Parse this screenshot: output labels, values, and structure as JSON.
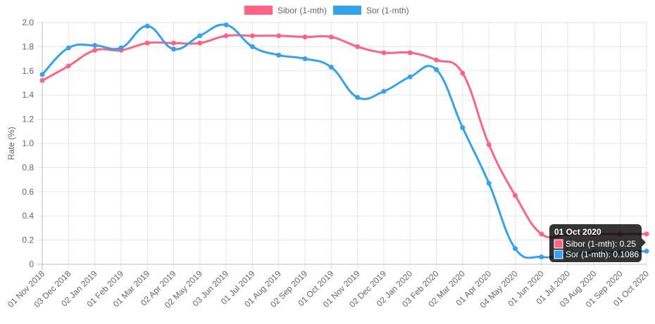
{
  "chart_data": {
    "type": "line",
    "categories": [
      "01 Nov 2018",
      "03 Dec 2018",
      "02 Jan 2019",
      "01 Feb 2019",
      "01 Mar 2019",
      "02 Apr 2019",
      "02 May 2019",
      "03 Jun 2019",
      "01 Jul 2019",
      "01 Aug 2019",
      "02 Sep 2019",
      "01 Oct 2019",
      "01 Nov 2019",
      "02 Dec 2019",
      "02 Jan 2020",
      "03 Feb 2020",
      "02 Mar 2020",
      "01 Apr 2020",
      "04 May 2020",
      "01 Jun 2020",
      "01 Jul 2020",
      "03 Aug 2020",
      "01 Sep 2020",
      "01 Oct 2020"
    ],
    "series": [
      {
        "name": "Sibor (1-mth)",
        "color": "#ff6384",
        "values": [
          1.52,
          1.64,
          1.77,
          1.77,
          1.83,
          1.83,
          1.83,
          1.89,
          1.89,
          1.89,
          1.88,
          1.88,
          1.8,
          1.75,
          1.75,
          1.69,
          1.58,
          0.99,
          0.57,
          0.25,
          0.25,
          0.25,
          0.25,
          0.25
        ]
      },
      {
        "name": "Sor (1-mth)",
        "color": "#36a2eb",
        "values": [
          1.57,
          1.79,
          1.81,
          1.79,
          1.97,
          1.78,
          1.89,
          1.98,
          1.8,
          1.73,
          1.7,
          1.63,
          1.38,
          1.43,
          1.55,
          1.61,
          1.13,
          0.67,
          0.13,
          0.06,
          0.08,
          0.1,
          0.1,
          0.1086
        ]
      }
    ],
    "ylabel": "Rate (%)",
    "xlabel": "",
    "ylim": [
      0,
      2.0
    ],
    "yticks": [
      "0",
      "0.2",
      "0.4",
      "0.6",
      "0.8",
      "1.0",
      "1.2",
      "1.4",
      "1.6",
      "1.8",
      "2.0"
    ],
    "grid": true,
    "legend_position": "top-center",
    "tooltip": {
      "title": "01 Oct 2020",
      "lines": [
        "Sibor (1-mth): 0.25",
        "Sor (1-mth): 0.1086"
      ]
    }
  }
}
